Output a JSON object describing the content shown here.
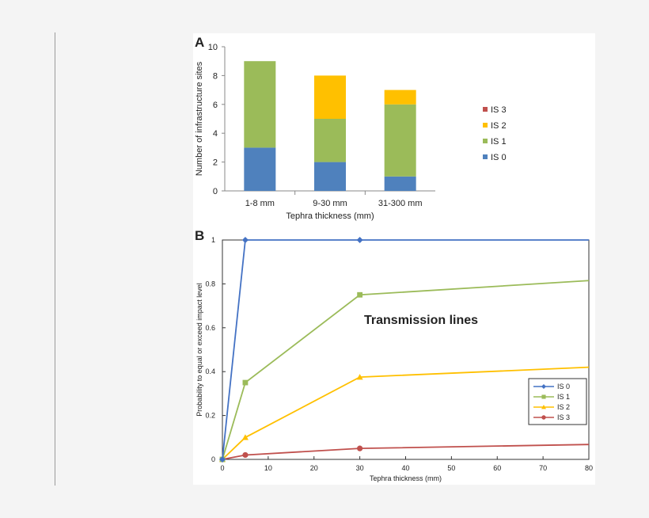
{
  "chart_data": [
    {
      "panel_label": "A",
      "type": "bar",
      "stacked": true,
      "categories": [
        "1-8 mm",
        "9-30 mm",
        "31-300 mm"
      ],
      "series": [
        {
          "name": "IS 0",
          "color": "#4f81bd",
          "values": [
            3,
            2,
            1
          ]
        },
        {
          "name": "IS 1",
          "color": "#9bbb59",
          "values": [
            6,
            3,
            5
          ]
        },
        {
          "name": "IS 2",
          "color": "#ffc000",
          "values": [
            0,
            3,
            1
          ]
        },
        {
          "name": "IS 3",
          "color": "#c0504d",
          "values": [
            0,
            0,
            0
          ]
        }
      ],
      "xlabel": "Tephra thickness (mm)",
      "ylabel": "Number of infrastructure sites",
      "ylim": [
        0,
        10
      ],
      "yticks": [
        "0",
        "2",
        "4",
        "6",
        "8",
        "10"
      ],
      "legend_order": [
        "IS 3",
        "IS 2",
        "IS 1",
        "IS 0"
      ],
      "legend_position": "right",
      "grid": false
    },
    {
      "panel_label": "B",
      "type": "line",
      "title": "Transmission lines",
      "xlabel": "Tephra thickness (mm)",
      "ylabel": "Probability to equal or exceed impact level",
      "xlim": [
        0,
        80
      ],
      "ylim": [
        0,
        1
      ],
      "xticks": [
        "0",
        "10",
        "20",
        "30",
        "40",
        "50",
        "60",
        "70",
        "80"
      ],
      "yticks": [
        "0",
        "0.2",
        "0.4",
        "0.6",
        "0.8",
        "1"
      ],
      "legend_position": "bottom-right",
      "grid": false,
      "series": [
        {
          "name": "IS 0",
          "color": "#4472c4",
          "marker": "diamond",
          "x": [
            0,
            5,
            30,
            80
          ],
          "y": [
            0,
            1,
            1,
            1
          ],
          "marker_x": [
            0,
            5,
            30
          ]
        },
        {
          "name": "IS 1",
          "color": "#9bbb59",
          "marker": "square",
          "x": [
            0,
            5,
            30,
            80
          ],
          "y": [
            0,
            0.35,
            0.75,
            0.815
          ],
          "marker_x": [
            0,
            5,
            30
          ]
        },
        {
          "name": "IS 2",
          "color": "#ffc000",
          "marker": "triangle",
          "x": [
            0,
            5,
            30,
            80
          ],
          "y": [
            0,
            0.1,
            0.375,
            0.42
          ],
          "marker_x": [
            0,
            5,
            30
          ]
        },
        {
          "name": "IS 3",
          "color": "#c0504d",
          "marker": "circle",
          "x": [
            0,
            5,
            30,
            80
          ],
          "y": [
            0,
            0.02,
            0.05,
            0.068
          ],
          "marker_x": [
            0,
            5,
            30
          ]
        }
      ]
    }
  ]
}
